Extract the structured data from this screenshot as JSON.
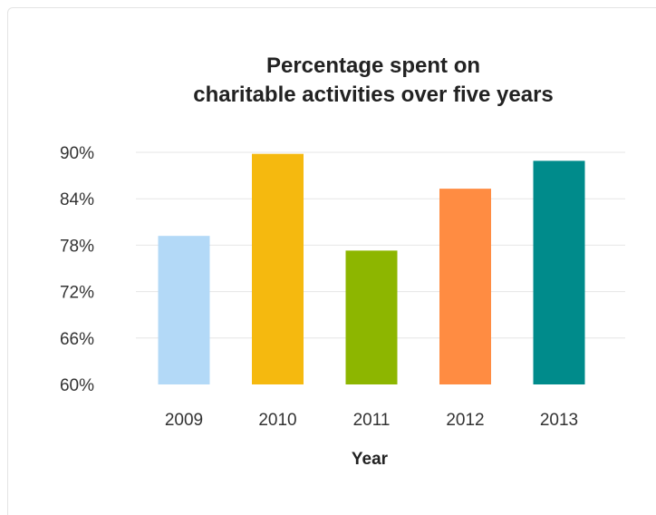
{
  "chart_data": {
    "type": "bar",
    "title": "Percentage spent on charitable activities over five years",
    "title_lines": [
      "Percentage spent on",
      "charitable activities over five years"
    ],
    "xlabel": "Year",
    "ylabel": "",
    "categories": [
      "2009",
      "2010",
      "2011",
      "2012",
      "2013"
    ],
    "values": [
      79.2,
      89.8,
      77.3,
      85.3,
      88.9
    ],
    "colors": [
      "#b3d9f7",
      "#f5b90f",
      "#8db600",
      "#ff8c42",
      "#008b8b"
    ],
    "ylim": [
      60,
      90
    ],
    "yticks": [
      60,
      66,
      72,
      78,
      84,
      90
    ],
    "ytick_labels": [
      "60%",
      "66%",
      "72%",
      "78%",
      "84%",
      "90%"
    ],
    "grid": true,
    "legend": "none"
  }
}
